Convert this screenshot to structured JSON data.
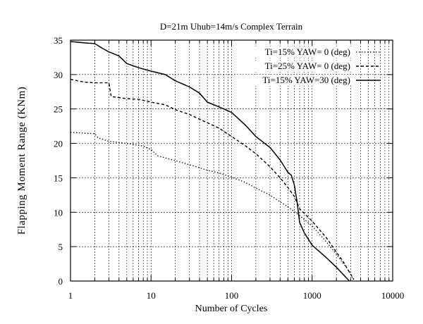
{
  "chart_data": {
    "type": "line",
    "title": "D=21m Uhub=14m/s  Complex Terrain",
    "xlabel": "Number of Cycles",
    "ylabel": "Flapping Moment Range (KNm)",
    "x_scale": "log",
    "xlim": [
      1,
      10000
    ],
    "ylim": [
      0,
      35
    ],
    "x_ticks": [
      1,
      10,
      100,
      1000,
      10000
    ],
    "x_tick_labels": [
      "1",
      "10",
      "100",
      "1000",
      "10000"
    ],
    "y_ticks": [
      0,
      5,
      10,
      15,
      20,
      25,
      30,
      35
    ],
    "y_tick_labels": [
      "0",
      "5",
      "10",
      "15",
      "20",
      "25",
      "30",
      "35"
    ],
    "grid": true,
    "legend_position": "top-right",
    "series": [
      {
        "name": "Ti=15% YAW= 0 (deg)",
        "style": "dotted",
        "color": "#000000",
        "x": [
          1,
          2,
          2.2,
          3,
          5,
          8,
          10,
          12,
          20,
          30,
          50,
          70,
          100,
          150,
          200,
          300,
          400,
          500,
          700,
          1000,
          1500,
          2000,
          2500,
          3000,
          3200
        ],
        "y": [
          21.6,
          21.4,
          20.8,
          20.3,
          20.0,
          19.6,
          19.1,
          18.2,
          17.5,
          16.9,
          16.1,
          15.7,
          15.1,
          14.3,
          13.5,
          12.5,
          11.5,
          10.8,
          9.5,
          8.0,
          5.7,
          3.9,
          2.4,
          1.1,
          0.3
        ]
      },
      {
        "name": "Ti=25% YAW= 0 (deg)",
        "style": "dashed",
        "color": "#000000",
        "x": [
          1,
          1.5,
          2,
          3,
          3.2,
          5,
          7,
          10,
          15,
          20,
          30,
          50,
          70,
          100,
          150,
          200,
          300,
          400,
          500,
          600,
          700,
          1000,
          1500,
          2000,
          2500,
          3000,
          3300
        ],
        "y": [
          29.3,
          28.9,
          28.8,
          28.8,
          26.8,
          26.5,
          26.4,
          26.0,
          25.6,
          24.9,
          24.2,
          23.0,
          22.2,
          21.0,
          19.6,
          18.5,
          16.6,
          15.0,
          13.6,
          12.3,
          10.5,
          8.7,
          6.3,
          4.2,
          2.6,
          1.0,
          0.2
        ]
      },
      {
        "name": "Ti=15% YAW=30 (deg)",
        "style": "solid",
        "color": "#000000",
        "x": [
          1,
          1.5,
          2,
          2.5,
          3,
          4,
          5,
          7,
          10,
          15,
          20,
          30,
          40,
          50,
          70,
          100,
          150,
          200,
          300,
          400,
          500,
          550,
          600,
          650,
          700,
          800,
          1000,
          1500,
          2000,
          2500,
          2900
        ],
        "y": [
          34.8,
          34.6,
          34.5,
          33.8,
          33.3,
          32.7,
          31.6,
          31.0,
          30.5,
          30.0,
          29.1,
          28.2,
          27.3,
          26.0,
          25.3,
          24.5,
          22.6,
          21.0,
          19.4,
          17.6,
          15.8,
          15.4,
          14.0,
          11.5,
          8.5,
          7.0,
          5.2,
          3.4,
          2.0,
          0.8,
          0.0
        ]
      }
    ]
  }
}
